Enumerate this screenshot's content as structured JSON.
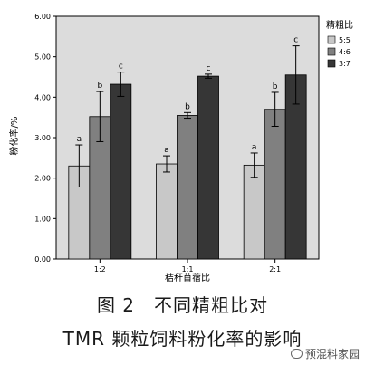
{
  "chart_data": {
    "type": "bar",
    "categories": [
      "1:2",
      "1:1",
      "2:1"
    ],
    "xlabel": "秸秆苜蓿比",
    "ylabel": "粉化率/%",
    "ylim": [
      0,
      6
    ],
    "yticks": [
      "0.00",
      "1.00",
      "2.00",
      "3.00",
      "4.00",
      "5.00",
      "6.00"
    ],
    "grid": false,
    "plot_background": "#dcdcdc",
    "legend": {
      "title": "精粗比",
      "placement": "right"
    },
    "series": [
      {
        "name": "5:5",
        "color": "#c8c8c8",
        "values": [
          2.3,
          2.35,
          2.32
        ],
        "errors": [
          0.52,
          0.2,
          0.3
        ],
        "labels": [
          "a",
          "a",
          "a"
        ]
      },
      {
        "name": "4:6",
        "color": "#808080",
        "values": [
          3.52,
          3.55,
          3.7
        ],
        "errors": [
          0.62,
          0.07,
          0.42
        ],
        "labels": [
          "b",
          "b",
          "b"
        ]
      },
      {
        "name": "3:7",
        "color": "#363636",
        "values": [
          4.32,
          4.52,
          4.55
        ],
        "errors": [
          0.3,
          0.05,
          0.72
        ],
        "labels": [
          "c",
          "c",
          "c"
        ]
      }
    ]
  },
  "caption": {
    "line1": "图 2　不同精粗比对",
    "line2": "TMR 颗粒饲料粉化率的影响"
  },
  "watermark": "预混料家园",
  "watermark_icon": "wechat-icon"
}
